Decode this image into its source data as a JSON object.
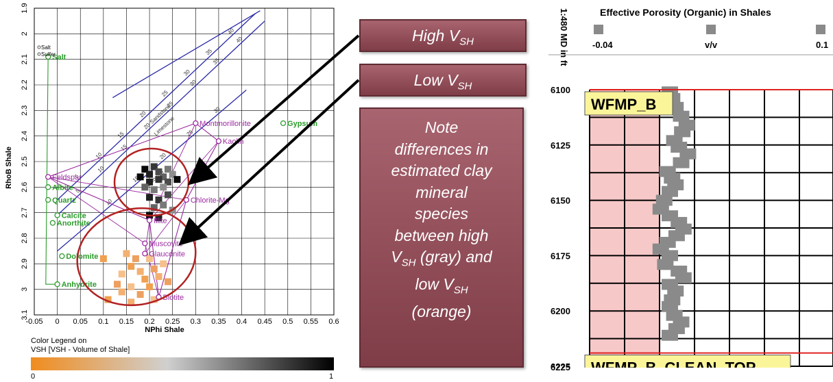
{
  "chart_data": [
    {
      "type": "scatter",
      "xlabel": "NPhi Shale",
      "ylabel": "RhoB Shale",
      "xlim": [
        -0.05,
        0.6
      ],
      "ylim": [
        1.9,
        3.1
      ],
      "y_inverted": true,
      "grid": true,
      "x_ticks": [
        "-0.05",
        "0",
        "0.05",
        "0.1",
        "0.15",
        "0.2",
        "0.25",
        "0.3",
        "0.35",
        "0.4",
        "0.45",
        "0.5",
        "0.55",
        "0.6"
      ],
      "y_ticks": [
        "1.9",
        "2",
        "2.1",
        "2.2",
        "2.3",
        "2.4",
        "2.5",
        "2.6",
        "2.7",
        "2.8",
        "2.9",
        "3",
        "3.1"
      ],
      "color_legend": {
        "title_line1": "Color Legend on",
        "title_line2": "VSH [VSH - Volume of Shale]",
        "min_label": "0",
        "max_label": "1",
        "low_color": "#f08c1e",
        "high_color": "#000000"
      },
      "small_legend": [
        "Salt",
        "Sulfer"
      ],
      "lithology_lines": [
        {
          "name": "Sandstone",
          "points": [
            [
              0.0,
              2.65
            ],
            [
              0.43,
              1.92
            ]
          ],
          "ticks": [
            "5",
            "10",
            "15",
            "20",
            "25",
            "30",
            "35",
            "40"
          ]
        },
        {
          "name": "Limestone",
          "points": [
            [
              0.0,
              2.71
            ],
            [
              0.45,
              1.95
            ]
          ],
          "ticks": [
            "5",
            "10",
            "15",
            "20",
            "25",
            "30",
            "35",
            "40"
          ]
        },
        {
          "name": "Dolomite",
          "points": [
            [
              0.0,
              2.85
            ],
            [
              0.41,
              2.22
            ]
          ],
          "ticks": [
            "5",
            "10",
            "15",
            "20",
            "25",
            "30"
          ]
        }
      ],
      "minerals": [
        {
          "name": "Salt",
          "x": -0.02,
          "y": 2.09,
          "group": "green"
        },
        {
          "name": "Gypsum",
          "x": 0.49,
          "y": 2.35,
          "group": "green"
        },
        {
          "name": "Feldspar",
          "x": -0.02,
          "y": 2.56,
          "group": "purple"
        },
        {
          "name": "Albite",
          "x": -0.02,
          "y": 2.6,
          "group": "green"
        },
        {
          "name": "Quartz",
          "x": -0.02,
          "y": 2.65,
          "group": "green"
        },
        {
          "name": "Calcite",
          "x": 0.0,
          "y": 2.71,
          "group": "green"
        },
        {
          "name": "Anorthite",
          "x": -0.01,
          "y": 2.74,
          "group": "green"
        },
        {
          "name": "Dolomite",
          "x": 0.01,
          "y": 2.87,
          "group": "green"
        },
        {
          "name": "Anhydrite",
          "x": 0.0,
          "y": 2.98,
          "group": "green"
        },
        {
          "name": "Montmorillonite",
          "x": 0.3,
          "y": 2.35,
          "group": "purple"
        },
        {
          "name": "Kaolin",
          "x": 0.35,
          "y": 2.42,
          "group": "purple"
        },
        {
          "name": "Chlorite-Mg",
          "x": 0.28,
          "y": 2.65,
          "group": "purple"
        },
        {
          "name": "Illite",
          "x": 0.2,
          "y": 2.73,
          "group": "purple"
        },
        {
          "name": "Muscovite",
          "x": 0.19,
          "y": 2.82,
          "group": "purple"
        },
        {
          "name": "Glauconite",
          "x": 0.19,
          "y": 2.86,
          "group": "purple"
        },
        {
          "name": "Biotite",
          "x": 0.22,
          "y": 3.03,
          "group": "purple"
        }
      ],
      "series": [
        {
          "name": "High VSH (gray)",
          "color": "#444444",
          "points": [
            [
              0.19,
              2.53
            ],
            [
              0.2,
              2.55
            ],
            [
              0.21,
              2.52
            ],
            [
              0.22,
              2.54
            ],
            [
              0.23,
              2.56
            ],
            [
              0.24,
              2.53
            ],
            [
              0.25,
              2.55
            ],
            [
              0.18,
              2.56
            ],
            [
              0.2,
              2.58
            ],
            [
              0.22,
              2.57
            ],
            [
              0.24,
              2.58
            ],
            [
              0.19,
              2.6
            ],
            [
              0.21,
              2.61
            ],
            [
              0.23,
              2.6
            ],
            [
              0.26,
              2.57
            ],
            [
              0.2,
              2.64
            ],
            [
              0.22,
              2.65
            ],
            [
              0.24,
              2.63
            ],
            [
              0.21,
              2.68
            ],
            [
              0.23,
              2.67
            ],
            [
              0.25,
              2.69
            ],
            [
              0.2,
              2.71
            ],
            [
              0.22,
              2.72
            ]
          ]
        },
        {
          "name": "Low VSH (orange)",
          "color": "#f0a050",
          "points": [
            [
              0.1,
              2.88
            ],
            [
              0.15,
              2.86
            ],
            [
              0.17,
              2.88
            ],
            [
              0.2,
              2.88
            ],
            [
              0.16,
              2.91
            ],
            [
              0.18,
              2.93
            ],
            [
              0.21,
              2.92
            ],
            [
              0.14,
              2.94
            ],
            [
              0.19,
              2.96
            ],
            [
              0.22,
              2.95
            ],
            [
              0.13,
              2.98
            ],
            [
              0.16,
              2.99
            ],
            [
              0.2,
              2.99
            ],
            [
              0.14,
              3.01
            ],
            [
              0.18,
              3.02
            ],
            [
              0.21,
              3.04
            ],
            [
              0.11,
              3.04
            ],
            [
              0.16,
              3.05
            ],
            [
              0.24,
              2.97
            ],
            [
              0.23,
              2.9
            ]
          ]
        }
      ]
    },
    {
      "type": "line",
      "title": "Effective Porosity (Organic) in Shales",
      "depth_label": "1:480 MD in ft",
      "xlim": [
        -0.04,
        0.16
      ],
      "x_unit": "v/v",
      "x_min_label": "-0.04",
      "x_max_label": "0.1",
      "depth_ticks": [
        "6100",
        "6125",
        "6150",
        "6175",
        "6200",
        "6225"
      ],
      "depth_range": [
        6100,
        6225
      ],
      "zones": [
        {
          "name": "WFMP_B",
          "top": 6100
        },
        {
          "name": "WFMP_B_CLEAN_TOP",
          "top": 6219
        }
      ],
      "series": [
        {
          "name": "Effective Porosity",
          "color": "#8a8a8a",
          "points": [
            [
              0.02,
              6101
            ],
            [
              0.022,
              6104
            ],
            [
              0.025,
              6108
            ],
            [
              0.03,
              6112
            ],
            [
              0.035,
              6116
            ],
            [
              0.031,
              6119
            ],
            [
              0.024,
              6123
            ],
            [
              0.028,
              6126
            ],
            [
              0.036,
              6129
            ],
            [
              0.03,
              6133
            ],
            [
              0.018,
              6137
            ],
            [
              0.022,
              6140
            ],
            [
              0.025,
              6143
            ],
            [
              0.02,
              6146
            ],
            [
              0.015,
              6150
            ],
            [
              0.012,
              6154
            ],
            [
              0.02,
              6157
            ],
            [
              0.028,
              6160
            ],
            [
              0.032,
              6163
            ],
            [
              0.026,
              6166
            ],
            [
              0.018,
              6169
            ],
            [
              0.012,
              6172
            ],
            [
              0.02,
              6175
            ],
            [
              0.016,
              6179
            ],
            [
              0.028,
              6182
            ],
            [
              0.032,
              6185
            ],
            [
              0.02,
              6188
            ],
            [
              0.025,
              6191
            ],
            [
              0.022,
              6195
            ],
            [
              0.02,
              6198
            ],
            [
              0.024,
              6202
            ],
            [
              0.03,
              6205
            ],
            [
              0.026,
              6208
            ],
            [
              0.02,
              6211
            ]
          ]
        }
      ]
    }
  ],
  "callouts": {
    "high_prefix": "High V",
    "high_sub": "SH",
    "low_prefix": "Low V",
    "low_sub": "SH",
    "note_lines": [
      "Note",
      "differences in",
      "estimated clay",
      "mineral",
      "species",
      "between high"
    ],
    "note_vsh_sub": "SH",
    "note_gray": " (gray) and",
    "note_low": "low V",
    "note_orange": "(orange)"
  }
}
